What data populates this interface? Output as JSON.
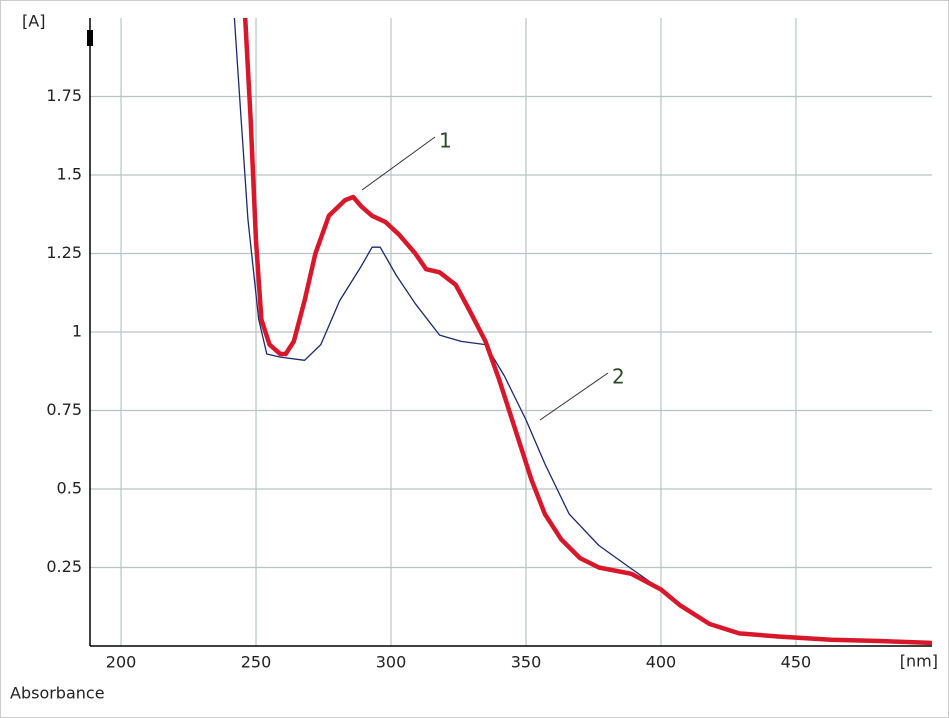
{
  "chart_data": {
    "type": "line",
    "y_label": "[A]",
    "x_label": "[nm]",
    "footer": "Absorbance",
    "annotations": [
      "1",
      "2"
    ],
    "xlim": [
      188.5,
      500.4
    ],
    "ylim": [
      0,
      2
    ],
    "xticks": [
      200,
      250,
      300,
      350,
      400,
      450
    ],
    "yticks": [
      0.25,
      0.5,
      0.75,
      1,
      1.25,
      1.5,
      1.75
    ],
    "grid": true,
    "series": [
      {
        "name": "1",
        "color": "#d8182a",
        "width": 4.5,
        "x": [
          246,
          248,
          250,
          252,
          255,
          259,
          261,
          264,
          268,
          272,
          277,
          283,
          286,
          289,
          293,
          298,
          303,
          309,
          313,
          318,
          324,
          329,
          335,
          340,
          346,
          352,
          357,
          363,
          370,
          377,
          389,
          400,
          407,
          418,
          429,
          444,
          463,
          481,
          500
        ],
        "values": [
          2.0,
          1.68,
          1.29,
          1.04,
          0.96,
          0.93,
          0.93,
          0.97,
          1.1,
          1.25,
          1.37,
          1.42,
          1.43,
          1.4,
          1.37,
          1.35,
          1.31,
          1.25,
          1.2,
          1.19,
          1.15,
          1.07,
          0.97,
          0.85,
          0.69,
          0.53,
          0.42,
          0.34,
          0.28,
          0.25,
          0.23,
          0.18,
          0.13,
          0.07,
          0.04,
          0.03,
          0.02,
          0.016,
          0.01
        ]
      },
      {
        "name": "2",
        "color": "#1a2a6c",
        "width": 1.3,
        "x": [
          242,
          244,
          247,
          251,
          254,
          259,
          268,
          274,
          281,
          289,
          293,
          296,
          302,
          309,
          318,
          326,
          335,
          342,
          350,
          357,
          366,
          377,
          390,
          400,
          407,
          418,
          429,
          444,
          463,
          481,
          500
        ],
        "values": [
          2.0,
          1.74,
          1.36,
          1.04,
          0.93,
          0.92,
          0.91,
          0.96,
          1.1,
          1.21,
          1.27,
          1.27,
          1.18,
          1.09,
          0.99,
          0.97,
          0.96,
          0.86,
          0.72,
          0.58,
          0.42,
          0.32,
          0.24,
          0.18,
          0.13,
          0.07,
          0.04,
          0.03,
          0.02,
          0.016,
          0.01
        ]
      }
    ]
  }
}
